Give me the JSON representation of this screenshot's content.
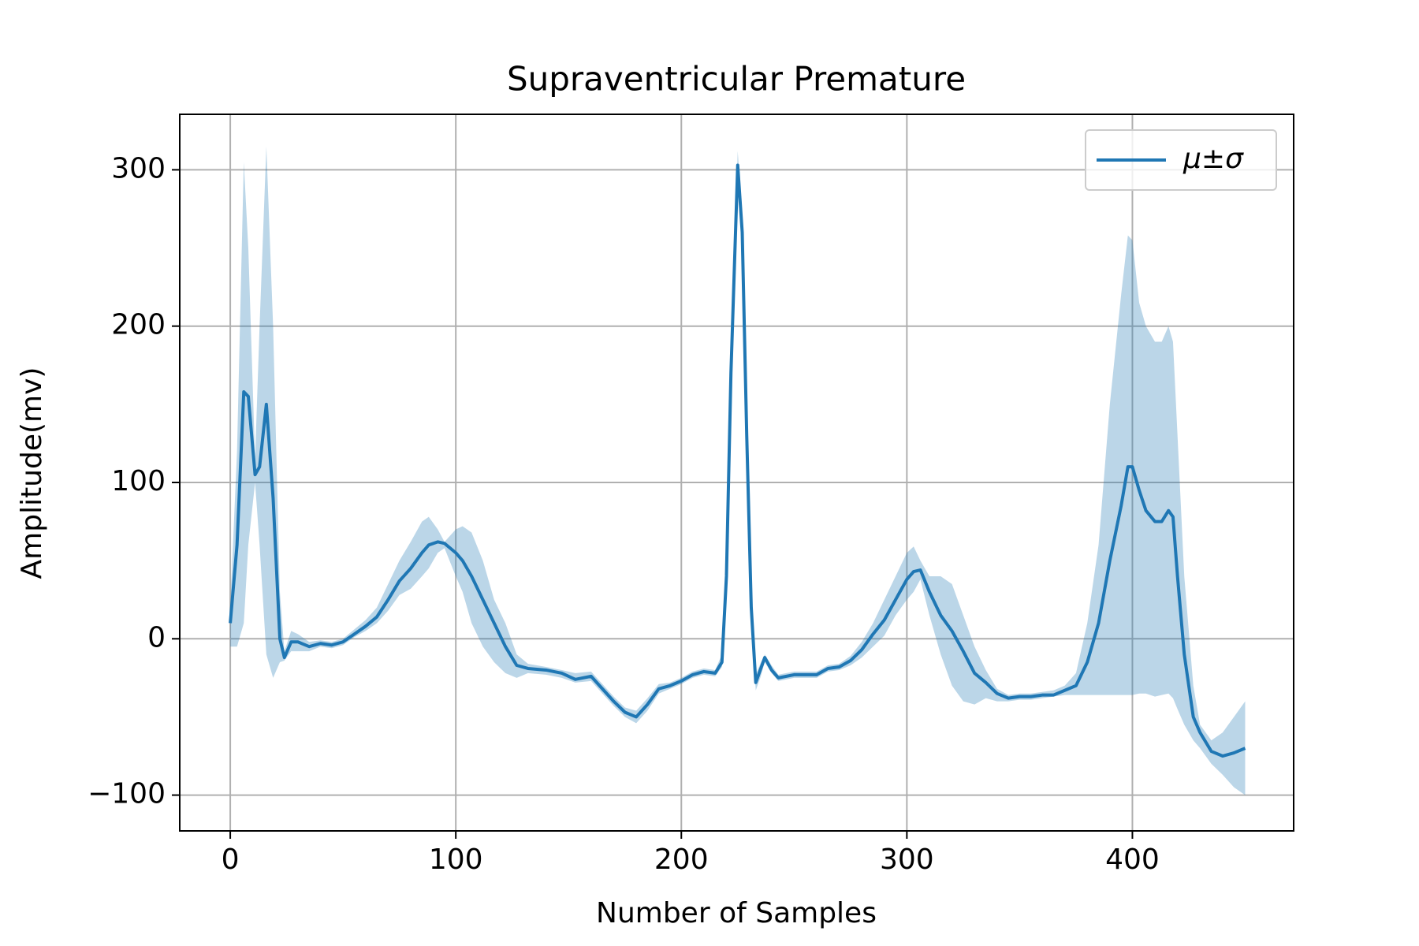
{
  "chart_data": {
    "type": "line",
    "title": "Supraventricular Premature",
    "xlabel": "Number of Samples",
    "ylabel": "Amplitude(mv)",
    "xlim": [
      -22.4,
      471.5
    ],
    "ylim": [
      -122.9,
      335.5
    ],
    "xticks": [
      0,
      100,
      200,
      300,
      400
    ],
    "yticks": [
      {
        "value": -100,
        "label": "−100"
      },
      0,
      100,
      200,
      300
    ],
    "grid": true,
    "legend": "upper right",
    "x": [
      0,
      3,
      6,
      8,
      11,
      13,
      16,
      19,
      22,
      24,
      27,
      30,
      35,
      40,
      45,
      50,
      55,
      60,
      65,
      70,
      75,
      80,
      85,
      88,
      92,
      95,
      100,
      103,
      107,
      112,
      117,
      122,
      127,
      132,
      140,
      147,
      153,
      160,
      165,
      170,
      175,
      180,
      185,
      190,
      195,
      200,
      205,
      210,
      215,
      218,
      220,
      222,
      225,
      227,
      229,
      231,
      233,
      235,
      237,
      240,
      243,
      250,
      260,
      265,
      270,
      275,
      280,
      285,
      290,
      295,
      300,
      303,
      306,
      310,
      315,
      320,
      325,
      330,
      335,
      340,
      345,
      350,
      355,
      360,
      365,
      370,
      375,
      380,
      385,
      390,
      395,
      398,
      400,
      403,
      406,
      410,
      413,
      416,
      418,
      420,
      423,
      427,
      430,
      435,
      440,
      445,
      450
    ],
    "series": [
      {
        "name": "μ±σ",
        "color": "#1f77b4",
        "band_opacity": 0.3,
        "values": [
          10,
          60,
          158,
          155,
          105,
          110,
          150,
          90,
          0,
          -12,
          -2,
          -2,
          -5,
          -3,
          -4,
          -2,
          3,
          8,
          14,
          25,
          37,
          45,
          55,
          60,
          62,
          61,
          55,
          50,
          40,
          25,
          10,
          -5,
          -17,
          -19,
          -20,
          -22,
          -26,
          -24,
          -32,
          -40,
          -47,
          -50,
          -42,
          -32,
          -30,
          -27,
          -23,
          -21,
          -22,
          -15,
          40,
          170,
          303,
          260,
          130,
          20,
          -28,
          -20,
          -12,
          -20,
          -25,
          -23,
          -23,
          -19,
          -18,
          -14,
          -7,
          3,
          12,
          25,
          38,
          43,
          44,
          30,
          15,
          5,
          -8,
          -22,
          -28,
          -35,
          -38,
          -37,
          -37,
          -36,
          -36,
          -33,
          -30,
          -15,
          10,
          50,
          85,
          110,
          110,
          95,
          82,
          75,
          75,
          82,
          78,
          40,
          -10,
          -50,
          -60,
          -72,
          -75,
          -73,
          -70
        ],
        "lower": [
          -5,
          -5,
          10,
          60,
          100,
          60,
          -10,
          -25,
          -15,
          -14,
          -8,
          -8,
          -8,
          -5,
          -6,
          -4,
          1,
          5,
          10,
          18,
          28,
          32,
          40,
          45,
          55,
          58,
          40,
          30,
          10,
          -5,
          -15,
          -22,
          -25,
          -22,
          -23,
          -25,
          -28,
          -27,
          -35,
          -43,
          -50,
          -54,
          -46,
          -35,
          -32,
          -29,
          -25,
          -23,
          -24,
          -18,
          30,
          150,
          300,
          250,
          120,
          15,
          -33,
          -25,
          -15,
          -22,
          -27,
          -25,
          -25,
          -21,
          -20,
          -17,
          -12,
          -5,
          2,
          15,
          25,
          30,
          38,
          15,
          -10,
          -30,
          -40,
          -42,
          -38,
          -40,
          -40,
          -39,
          -39,
          -38,
          -37,
          -36,
          -36,
          -36,
          -36,
          -36,
          -36,
          -36,
          -36,
          -35,
          -35,
          -37,
          -36,
          -35,
          -38,
          -45,
          -55,
          -65,
          -70,
          -80,
          -87,
          -95,
          -100
        ],
        "upper": [
          20,
          120,
          305,
          250,
          115,
          200,
          315,
          200,
          30,
          -8,
          5,
          3,
          -2,
          -1,
          -2,
          0,
          6,
          12,
          20,
          35,
          50,
          62,
          75,
          78,
          70,
          62,
          70,
          72,
          68,
          50,
          25,
          10,
          -10,
          -16,
          -18,
          -20,
          -22,
          -21,
          -29,
          -37,
          -44,
          -46,
          -38,
          -29,
          -28,
          -25,
          -21,
          -19,
          -20,
          -10,
          50,
          180,
          312,
          270,
          140,
          25,
          -23,
          -16,
          -10,
          -17,
          -23,
          -21,
          -21,
          -17,
          -16,
          -11,
          -2,
          10,
          25,
          40,
          55,
          59,
          50,
          40,
          40,
          35,
          15,
          -5,
          -20,
          -32,
          -36,
          -35,
          -35,
          -34,
          -33,
          -30,
          -22,
          10,
          60,
          150,
          220,
          258,
          255,
          215,
          200,
          190,
          190,
          200,
          190,
          130,
          40,
          -30,
          -55,
          -65,
          -60,
          -50,
          -40
        ]
      }
    ]
  }
}
